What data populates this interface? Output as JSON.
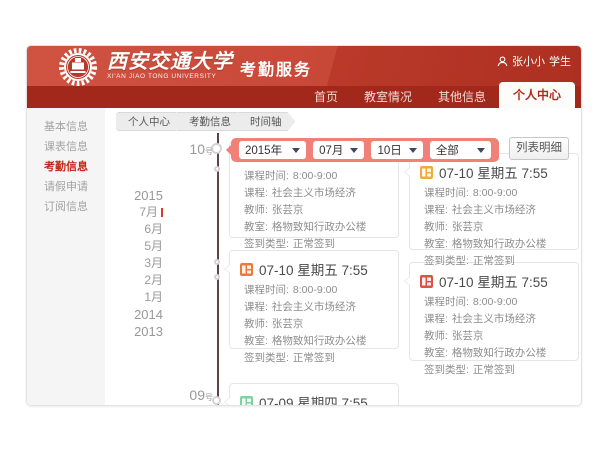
{
  "header": {
    "university_cn": "西安交通大学",
    "university_en": "XI'AN JIAO TONG UNIVERSITY",
    "app_title": "考勤服务",
    "user_name": "张小小",
    "user_role": "学生"
  },
  "nav": {
    "items": [
      {
        "label": "首页",
        "active": false
      },
      {
        "label": "教室情况",
        "active": false
      },
      {
        "label": "其他信息",
        "active": false
      },
      {
        "label": "个人中心",
        "active": true
      }
    ]
  },
  "sidebar": {
    "items": [
      {
        "label": "基本信息",
        "active": false
      },
      {
        "label": "课表信息",
        "active": false
      },
      {
        "label": "考勤信息",
        "active": true
      },
      {
        "label": "请假申请",
        "active": false
      },
      {
        "label": "订阅信息",
        "active": false
      }
    ]
  },
  "breadcrumb": {
    "items": [
      "个人中心",
      "考勤信息",
      "时间轴"
    ]
  },
  "timeline": {
    "year_list": [
      {
        "label": "2015",
        "type": "year",
        "current": false
      },
      {
        "label": "7月",
        "type": "month",
        "current": true
      },
      {
        "label": "6月",
        "type": "month",
        "current": false
      },
      {
        "label": "5月",
        "type": "month",
        "current": false
      },
      {
        "label": "3月",
        "type": "month",
        "current": false
      },
      {
        "label": "2月",
        "type": "month",
        "current": false
      },
      {
        "label": "1月",
        "type": "month",
        "current": false
      },
      {
        "label": "2014",
        "type": "year",
        "current": false
      },
      {
        "label": "2013",
        "type": "year",
        "current": false
      }
    ],
    "day_markers": [
      {
        "num": "10",
        "suffix": "号"
      },
      {
        "num": "09",
        "suffix": "号"
      }
    ]
  },
  "filter": {
    "selects": [
      {
        "value": "2015年"
      },
      {
        "value": "07月"
      },
      {
        "value": "10日"
      },
      {
        "value": "全部"
      }
    ],
    "bar_color": "#f08078",
    "list_button": "列表明细"
  },
  "cards": [
    {
      "pos": "left-1",
      "header": null,
      "icon_color": null,
      "details": [
        {
          "label": "课程时间:",
          "value": "8:00-9:00"
        },
        {
          "label": "课程:",
          "value": "社会主义市场经济"
        },
        {
          "label": "教师:",
          "value": "张芸京"
        },
        {
          "label": "教室:",
          "value": "格物致知行政办公楼"
        },
        {
          "label": "签到类型:",
          "value": "正常签到"
        }
      ]
    },
    {
      "pos": "right-1",
      "header": "07-10 星期五 7:55",
      "icon_color": "#f5a83c",
      "details": [
        {
          "label": "课程时间:",
          "value": "8:00-9:00"
        },
        {
          "label": "课程:",
          "value": "社会主义市场经济"
        },
        {
          "label": "教师:",
          "value": "张芸京"
        },
        {
          "label": "教室:",
          "value": "格物致知行政办公楼"
        },
        {
          "label": "签到类型:",
          "value": "正常签到"
        }
      ]
    },
    {
      "pos": "left-2",
      "header": "07-10 星期五 7:55",
      "icon_color": "#ef7a38",
      "details": [
        {
          "label": "课程时间:",
          "value": "8:00-9:00"
        },
        {
          "label": "课程:",
          "value": "社会主义市场经济"
        },
        {
          "label": "教师:",
          "value": "张芸京"
        },
        {
          "label": "教室:",
          "value": "格物致知行政办公楼"
        },
        {
          "label": "签到类型:",
          "value": "正常签到"
        }
      ]
    },
    {
      "pos": "right-2",
      "header": "07-10 星期五 7:55",
      "icon_color": "#e04f44",
      "details": [
        {
          "label": "课程时间:",
          "value": "8:00-9:00"
        },
        {
          "label": "课程:",
          "value": "社会主义市场经济"
        },
        {
          "label": "教师:",
          "value": "张芸京"
        },
        {
          "label": "教室:",
          "value": "格物致知行政办公楼"
        },
        {
          "label": "签到类型:",
          "value": "正常签到"
        }
      ]
    },
    {
      "pos": "left-3",
      "header": "07-09 星期四 7:55",
      "icon_color": "#7bd3a2",
      "details": []
    }
  ],
  "colors": {
    "accent_red": "#c0392b",
    "nav_bg": "#a2281c",
    "timeline_line": "#5c4542"
  }
}
